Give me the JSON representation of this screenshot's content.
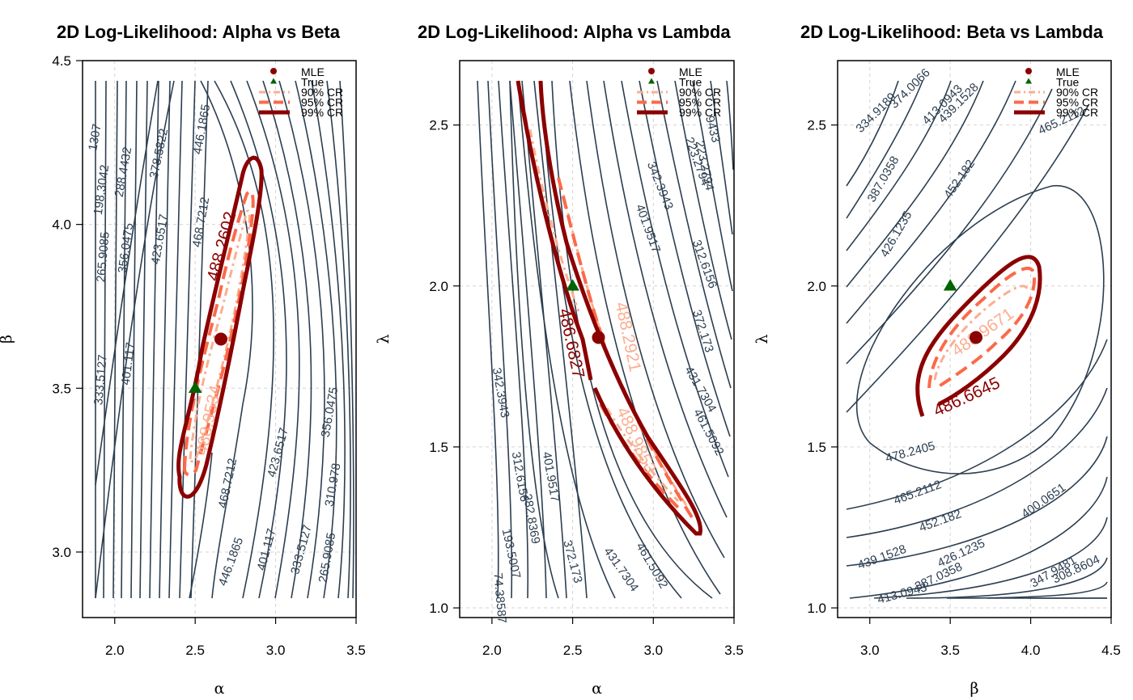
{
  "colors": {
    "contour": "#2c3e50",
    "cr90": "#fcae91",
    "cr95": "#fb6a4a",
    "cr99": "#8b0000",
    "mle": "#8b0000",
    "truth": "#006400",
    "grid": "#d3d3d3"
  },
  "legend_labels": [
    "MLE",
    "True",
    "90% CR",
    "95% CR",
    "99% CR"
  ],
  "chart_data": [
    {
      "type": "contour",
      "title": "2D Log-Likelihood: Alpha vs Beta",
      "xlabel": "α",
      "ylabel": "β",
      "xlim": [
        1.8,
        3.5
      ],
      "ylim": [
        2.8,
        4.5
      ],
      "xticks": [
        "2.0",
        "2.5",
        "3.0",
        "3.5"
      ],
      "yticks": [
        "3.0",
        "3.5",
        "4.0",
        "4.5"
      ],
      "grid": true,
      "legend_position": "top-right",
      "mle": {
        "x": 2.66,
        "y": 3.65
      },
      "true": {
        "x": 2.5,
        "y": 3.5
      },
      "contour_levels": [
        "1307",
        "198.3042",
        "288.4432",
        "378.5822",
        "446.1865",
        "265.9085",
        "356.0475",
        "423.6517",
        "468.7212",
        "333.5127",
        "401.117",
        "468.7212",
        "446.1865",
        "401.117",
        "333.5127",
        "423.6517",
        "265.9085",
        "356.0475",
        "310.978"
      ],
      "cr_labels": [
        {
          "text": "488.2602",
          "level": "99"
        },
        {
          "text": "488.9534",
          "level": "90"
        }
      ]
    },
    {
      "type": "contour",
      "title": "2D Log-Likelihood: Alpha vs Lambda",
      "xlabel": "α",
      "ylabel": "λ",
      "xlim": [
        1.8,
        3.5
      ],
      "ylim": [
        0.97,
        2.7
      ],
      "xticks": [
        "2.0",
        "2.5",
        "3.0",
        "3.5"
      ],
      "yticks": [
        "1.0",
        "1.5",
        "2.0",
        "2.5"
      ],
      "grid": true,
      "legend_position": "top-right",
      "mle": {
        "x": 2.66,
        "y": 1.84
      },
      "true": {
        "x": 2.5,
        "y": 2.0
      },
      "contour_levels": [
        "342.3943",
        "223.2794",
        "312.6156",
        "401.9517",
        "282.8369",
        "372.173",
        "431.7304",
        "461.5092",
        "193.5007",
        "74.38587",
        "342.3943",
        "401.9517",
        "312.6156",
        "372.173",
        "431.7304",
        "461.5092",
        "223.2794",
        "9433"
      ],
      "cr_labels": [
        {
          "text": "486.6827",
          "level": "99"
        },
        {
          "text": "488.2921",
          "level": "90"
        },
        {
          "text": "488.9853",
          "level": "90"
        }
      ]
    },
    {
      "type": "contour",
      "title": "2D Log-Likelihood: Beta vs Lambda",
      "xlabel": "β",
      "ylabel": "λ",
      "xlim": [
        2.8,
        4.5
      ],
      "ylim": [
        0.97,
        2.7
      ],
      "xticks": [
        "3.0",
        "3.5",
        "4.0",
        "4.5"
      ],
      "yticks": [
        "1.0",
        "1.5",
        "2.0",
        "2.5"
      ],
      "grid": true,
      "legend_position": "top-right",
      "mle": {
        "x": 3.66,
        "y": 1.84
      },
      "true": {
        "x": 3.5,
        "y": 2.0
      },
      "contour_levels": [
        "334.9189",
        "374.0066",
        "413.0943",
        "439.1528",
        "465.2112",
        "387.0358",
        "452.182",
        "426.1235",
        "478.2405",
        "465.2112",
        "452.182",
        "439.1528",
        "426.1235",
        "400.0651",
        "413.0943",
        "387.0358",
        "347.9481",
        "308.8604"
      ],
      "cr_labels": [
        {
          "text": "488.9671",
          "level": "90"
        },
        {
          "text": "486.6645",
          "level": "99"
        }
      ]
    }
  ]
}
